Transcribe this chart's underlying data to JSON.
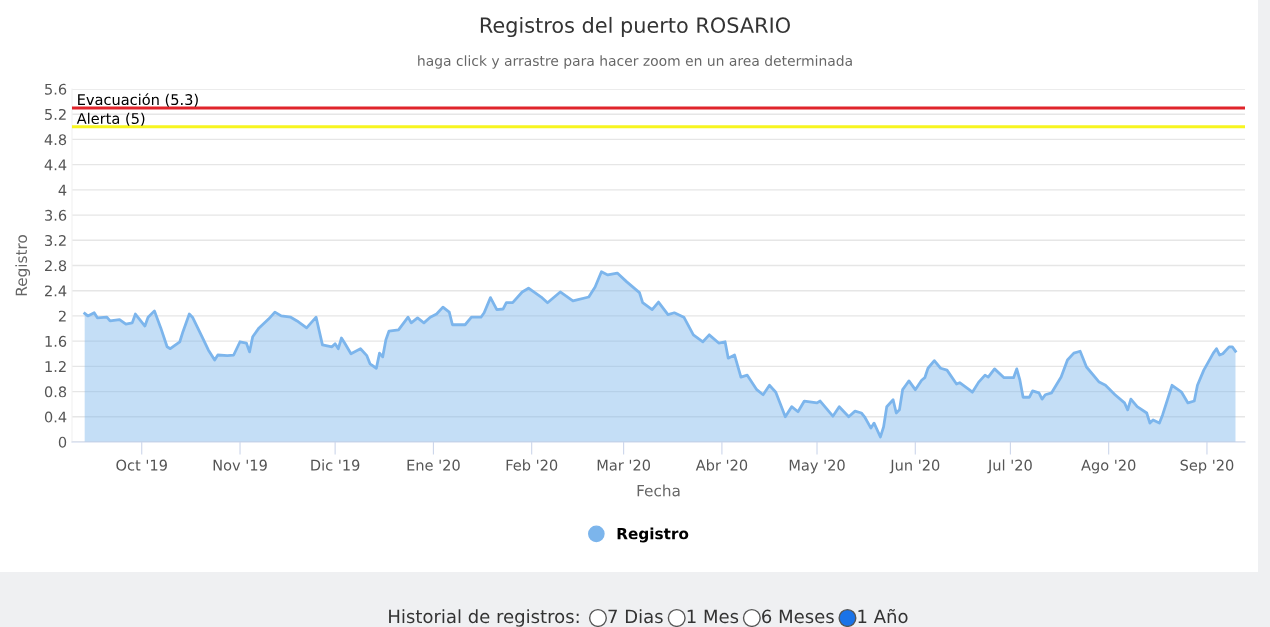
{
  "chart_data": {
    "type": "area",
    "title": "Registros del puerto ROSARIO",
    "subtitle": "haga click y arrastre para hacer zoom en un area determinada",
    "xlabel": "Fecha",
    "ylabel": "Registro",
    "x": [
      "2019-09-13",
      "2019-09-14",
      "2019-09-16",
      "2019-09-17",
      "2019-09-20",
      "2019-09-21",
      "2019-09-24",
      "2019-09-26",
      "2019-09-28",
      "2019-09-29",
      "2019-10-02",
      "2019-10-03",
      "2019-10-05",
      "2019-10-07",
      "2019-10-09",
      "2019-10-10",
      "2019-10-13",
      "2019-10-14",
      "2019-10-16",
      "2019-10-17",
      "2019-10-20",
      "2019-10-22",
      "2019-10-24",
      "2019-10-25",
      "2019-10-28",
      "2019-10-30",
      "2019-11-01",
      "2019-11-03",
      "2019-11-04",
      "2019-11-05",
      "2019-11-07",
      "2019-11-10",
      "2019-11-12",
      "2019-11-14",
      "2019-11-17",
      "2019-11-19",
      "2019-11-22",
      "2019-11-25",
      "2019-11-27",
      "2019-11-30",
      "2019-12-01",
      "2019-12-02",
      "2019-12-03",
      "2019-12-04",
      "2019-12-06",
      "2019-12-09",
      "2019-12-11",
      "2019-12-12",
      "2019-12-14",
      "2019-12-15",
      "2019-12-16",
      "2019-12-17",
      "2019-12-18",
      "2019-12-21",
      "2019-12-24",
      "2019-12-25",
      "2019-12-27",
      "2019-12-29",
      "2019-12-31",
      "2020-01-02",
      "2020-01-04",
      "2020-01-06",
      "2020-01-07",
      "2020-01-11",
      "2020-01-13",
      "2020-01-16",
      "2020-01-17",
      "2020-01-19",
      "2020-01-21",
      "2020-01-23",
      "2020-01-24",
      "2020-01-26",
      "2020-01-29",
      "2020-01-31",
      "2020-02-04",
      "2020-02-06",
      "2020-02-10",
      "2020-02-14",
      "2020-02-19",
      "2020-02-21",
      "2020-02-23",
      "2020-02-25",
      "2020-02-28",
      "2020-03-02",
      "2020-03-06",
      "2020-03-07",
      "2020-03-10",
      "2020-03-12",
      "2020-03-15",
      "2020-03-17",
      "2020-03-20",
      "2020-03-23",
      "2020-03-26",
      "2020-03-28",
      "2020-03-31",
      "2020-04-02",
      "2020-04-03",
      "2020-04-05",
      "2020-04-07",
      "2020-04-09",
      "2020-04-12",
      "2020-04-14",
      "2020-04-16",
      "2020-04-18",
      "2020-04-21",
      "2020-04-23",
      "2020-04-25",
      "2020-04-27",
      "2020-05-01",
      "2020-05-02",
      "2020-05-06",
      "2020-05-08",
      "2020-05-11",
      "2020-05-13",
      "2020-05-15",
      "2020-05-16",
      "2020-05-18",
      "2020-05-19",
      "2020-05-21",
      "2020-05-22",
      "2020-05-23",
      "2020-05-25",
      "2020-05-26",
      "2020-05-27",
      "2020-05-28",
      "2020-05-29",
      "2020-05-30",
      "2020-06-01",
      "2020-06-03",
      "2020-06-04",
      "2020-06-05",
      "2020-06-07",
      "2020-06-09",
      "2020-06-11",
      "2020-06-14",
      "2020-06-15",
      "2020-06-18",
      "2020-06-19",
      "2020-06-21",
      "2020-06-23",
      "2020-06-24",
      "2020-06-26",
      "2020-06-29",
      "2020-07-02",
      "2020-07-03",
      "2020-07-04",
      "2020-07-05",
      "2020-07-07",
      "2020-07-08",
      "2020-07-10",
      "2020-07-11",
      "2020-07-12",
      "2020-07-14",
      "2020-07-17",
      "2020-07-19",
      "2020-07-21",
      "2020-07-23",
      "2020-07-25",
      "2020-07-29",
      "2020-07-31",
      "2020-08-03",
      "2020-08-06",
      "2020-08-07",
      "2020-08-08",
      "2020-08-10",
      "2020-08-13",
      "2020-08-14",
      "2020-08-15",
      "2020-08-17",
      "2020-08-18",
      "2020-08-21",
      "2020-08-24",
      "2020-08-26",
      "2020-08-28",
      "2020-08-29",
      "2020-08-31",
      "2020-09-03",
      "2020-09-04",
      "2020-09-05",
      "2020-09-06",
      "2020-09-08",
      "2020-09-09",
      "2020-09-10"
    ],
    "series": [
      {
        "name": "Registro",
        "color": "#7cb5ec",
        "values": [
          2.04,
          2.0,
          2.05,
          1.97,
          1.98,
          1.92,
          1.94,
          1.87,
          1.89,
          2.03,
          1.84,
          1.98,
          2.08,
          1.81,
          1.51,
          1.48,
          1.59,
          1.75,
          2.03,
          1.98,
          1.67,
          1.46,
          1.3,
          1.38,
          1.37,
          1.38,
          1.59,
          1.57,
          1.43,
          1.67,
          1.81,
          1.95,
          2.06,
          2.0,
          1.98,
          1.92,
          1.81,
          1.98,
          1.54,
          1.51,
          1.56,
          1.48,
          1.65,
          1.57,
          1.4,
          1.48,
          1.37,
          1.24,
          1.17,
          1.41,
          1.35,
          1.62,
          1.76,
          1.78,
          1.98,
          1.89,
          1.97,
          1.89,
          1.98,
          2.03,
          2.14,
          2.06,
          1.86,
          1.86,
          1.98,
          1.98,
          2.05,
          2.29,
          2.1,
          2.11,
          2.21,
          2.21,
          2.38,
          2.44,
          2.3,
          2.21,
          2.38,
          2.24,
          2.3,
          2.46,
          2.7,
          2.65,
          2.68,
          2.54,
          2.37,
          2.21,
          2.1,
          2.22,
          2.02,
          2.05,
          1.98,
          1.7,
          1.59,
          1.7,
          1.57,
          1.59,
          1.33,
          1.38,
          1.03,
          1.06,
          0.83,
          0.75,
          0.9,
          0.79,
          0.4,
          0.56,
          0.48,
          0.65,
          0.62,
          0.65,
          0.41,
          0.56,
          0.4,
          0.49,
          0.46,
          0.4,
          0.22,
          0.3,
          0.08,
          0.24,
          0.56,
          0.67,
          0.46,
          0.51,
          0.83,
          0.9,
          0.97,
          0.83,
          0.98,
          1.02,
          1.17,
          1.29,
          1.17,
          1.14,
          0.92,
          0.94,
          0.83,
          0.79,
          0.95,
          1.06,
          1.03,
          1.16,
          1.02,
          1.02,
          1.16,
          0.98,
          0.71,
          0.71,
          0.81,
          0.78,
          0.68,
          0.75,
          0.78,
          1.03,
          1.3,
          1.41,
          1.44,
          1.19,
          0.95,
          0.9,
          0.75,
          0.62,
          0.51,
          0.68,
          0.56,
          0.46,
          0.3,
          0.35,
          0.3,
          0.43,
          0.9,
          0.79,
          0.62,
          0.65,
          0.9,
          1.14,
          1.41,
          1.48,
          1.38,
          1.4,
          1.51,
          1.51,
          1.44
        ]
      }
    ],
    "xlim": [
      "2019-09-09",
      "2020-09-13"
    ],
    "xticks": [
      {
        "value": "2019-10-01",
        "label": "Oct '19"
      },
      {
        "value": "2019-11-01",
        "label": "Nov '19"
      },
      {
        "value": "2019-12-01",
        "label": "Dic '19"
      },
      {
        "value": "2020-01-01",
        "label": "Ene '20"
      },
      {
        "value": "2020-02-01",
        "label": "Feb '20"
      },
      {
        "value": "2020-03-01",
        "label": "Mar '20"
      },
      {
        "value": "2020-04-01",
        "label": "Abr '20"
      },
      {
        "value": "2020-05-01",
        "label": "May '20"
      },
      {
        "value": "2020-06-01",
        "label": "Jun '20"
      },
      {
        "value": "2020-07-01",
        "label": "Jul '20"
      },
      {
        "value": "2020-08-01",
        "label": "Ago '20"
      },
      {
        "value": "2020-09-01",
        "label": "Sep '20"
      }
    ],
    "ylim": [
      0,
      5.6
    ],
    "yticks": [
      0,
      0.4,
      0.8,
      1.2,
      1.6,
      2,
      2.4,
      2.8,
      3.2,
      3.6,
      4,
      4.4,
      4.8,
      5.2,
      5.6
    ],
    "ref_lines": [
      {
        "axis": "y",
        "value": 5.3,
        "label": "Evacuación (5.3)",
        "color": "#e0242b"
      },
      {
        "axis": "y",
        "value": 5,
        "label": "Alerta (5)",
        "color": "#f7f51f"
      }
    ],
    "grid": "y",
    "legend": "bottom",
    "annotations": [
      "Historial de registros:",
      "7 Dias",
      "1 Mes",
      "6 Meses",
      "1 Año"
    ]
  }
}
